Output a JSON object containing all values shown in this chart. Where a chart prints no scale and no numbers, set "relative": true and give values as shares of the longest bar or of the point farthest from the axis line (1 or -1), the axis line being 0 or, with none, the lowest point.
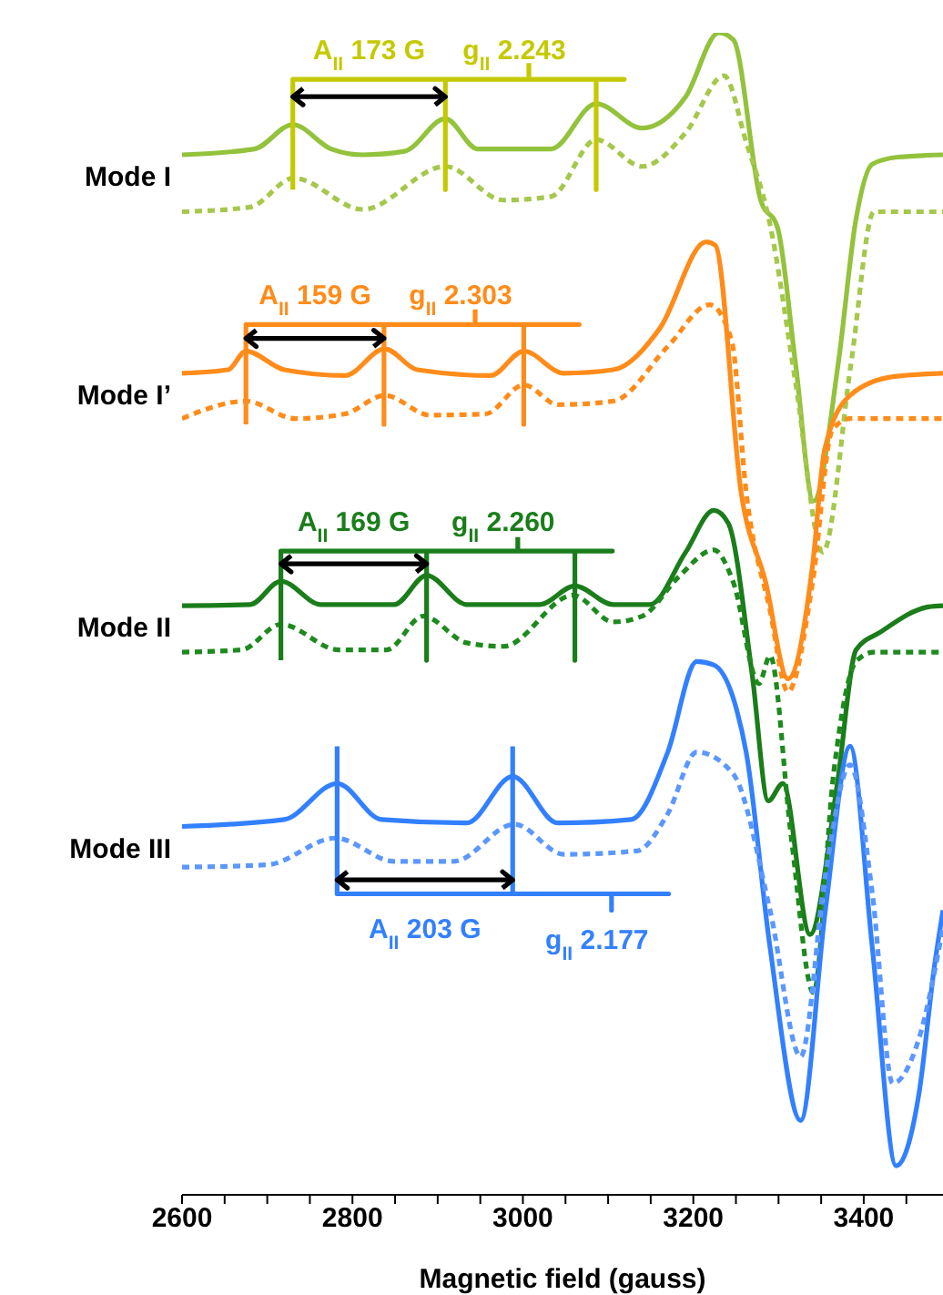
{
  "chart_data": {
    "type": "line",
    "relative": true,
    "xlabel": "Magnetic field (gauss)",
    "xlim": [
      2600,
      3493
    ],
    "xticks": [
      2600,
      {
        "value": 2650,
        "label": null
      },
      2800,
      {
        "value": 2700,
        "label": null
      },
      {
        "value": 2750,
        "label": null
      },
      {
        "value": 2850,
        "label": null
      },
      {
        "value": 2900,
        "label": null
      },
      {
        "value": 2950,
        "label": null
      },
      3000,
      {
        "value": 3050,
        "label": null
      },
      {
        "value": 3100,
        "label": null
      },
      {
        "value": 3150,
        "label": null
      },
      3200,
      {
        "value": 3250,
        "label": null
      },
      {
        "value": 3300,
        "label": null
      },
      {
        "value": 3350,
        "label": null
      },
      3400,
      {
        "value": 3450,
        "label": null
      }
    ],
    "series": [
      {
        "name": "Mode I",
        "color": "#93c23c",
        "line_style": "solid",
        "x": [
          2600,
          2685,
          2730,
          2775,
          2812,
          2861,
          2909,
          2947,
          3033,
          3086,
          3140,
          3191,
          3230,
          3247,
          3279,
          3299,
          3320,
          3341,
          3370,
          3391,
          3410,
          3440,
          3493
        ],
        "values": [
          0.895,
          0.9,
          0.921,
          0.9,
          0.895,
          0.898,
          0.926,
          0.9,
          0.9,
          0.939,
          0.918,
          0.945,
          1,
          0.994,
          0.856,
          0.832,
          0.715,
          0.597,
          0.715,
          0.84,
          0.887,
          0.893,
          0.895
        ]
      },
      {
        "color": "#a5c84c",
        "line_style": "dotted",
        "x": [
          2600,
          2680,
          2731,
          2812,
          2909,
          2977,
          3033,
          3086,
          3140,
          3191,
          3236,
          3262,
          3290,
          3320,
          3352,
          3385,
          3412,
          3434,
          3493
        ],
        "values": [
          0.846,
          0.85,
          0.875,
          0.848,
          0.885,
          0.856,
          0.859,
          0.908,
          0.885,
          0.914,
          0.963,
          0.906,
          0.835,
          0.699,
          0.553,
          0.715,
          0.846,
          0.846,
          0.846
        ]
      },
      {
        "name": "Mode I’",
        "color": "#ff8c1a",
        "line_style": "solid",
        "x": [
          2600,
          2654,
          2675,
          2720,
          2791,
          2838,
          2876,
          2962,
          3001,
          3048,
          3106,
          3161,
          3215,
          3226,
          3256,
          3285,
          3311,
          3340,
          3354,
          3384,
          3434,
          3493
        ],
        "values": [
          0.707,
          0.71,
          0.726,
          0.71,
          0.705,
          0.728,
          0.71,
          0.705,
          0.726,
          0.707,
          0.71,
          0.746,
          0.82,
          0.817,
          0.605,
          0.527,
          0.444,
          0.542,
          0.641,
          0.688,
          0.704,
          0.707
        ]
      },
      {
        "color": "#ff8c1a",
        "line_style": "dotted",
        "x": [
          2600,
          2675,
          2733,
          2791,
          2838,
          2891,
          2956,
          3001,
          3041,
          3106,
          3170,
          3219,
          3245,
          3262,
          3290,
          3311,
          3340,
          3363,
          3384,
          3493
        ],
        "values": [
          0.668,
          0.683,
          0.668,
          0.672,
          0.688,
          0.671,
          0.672,
          0.697,
          0.68,
          0.683,
          0.73,
          0.766,
          0.735,
          0.605,
          0.503,
          0.433,
          0.527,
          0.658,
          0.668,
          0.668
        ]
      },
      {
        "name": "Mode II",
        "color": "#1a7d1a",
        "line_style": "solid",
        "x": [
          2600,
          2680,
          2716,
          2763,
          2849,
          2887,
          2934,
          3020,
          3061,
          3106,
          3149,
          3191,
          3224,
          3241,
          3269,
          3288,
          3305,
          3337,
          3369,
          3391,
          3419,
          3476,
          3493
        ],
        "values": [
          0.507,
          0.508,
          0.528,
          0.508,
          0.508,
          0.533,
          0.508,
          0.508,
          0.524,
          0.508,
          0.508,
          0.553,
          0.589,
          0.578,
          0.448,
          0.339,
          0.354,
          0.224,
          0.354,
          0.469,
          0.484,
          0.506,
          0.507
        ]
      },
      {
        "color": "#1e8a1e",
        "line_style": "dotted",
        "x": [
          2600,
          2670,
          2716,
          2784,
          2840,
          2883,
          2934,
          2977,
          3059,
          3106,
          3140,
          3183,
          3224,
          3247,
          3277,
          3290,
          3315,
          3341,
          3365,
          3391,
          3412,
          3493
        ],
        "values": [
          0.467,
          0.469,
          0.491,
          0.469,
          0.469,
          0.498,
          0.475,
          0.472,
          0.516,
          0.493,
          0.498,
          0.532,
          0.555,
          0.527,
          0.44,
          0.464,
          0.307,
          0.174,
          0.365,
          0.459,
          0.467,
          0.467
        ]
      },
      {
        "name": "Mode III",
        "color": "#3380ff",
        "line_style": "solid",
        "x": [
          2600,
          2720,
          2782,
          2834,
          2934,
          2988,
          3041,
          3127,
          3170,
          3204,
          3224,
          3251,
          3262,
          3290,
          3326,
          3355,
          3384,
          3410,
          3438,
          3465,
          3483,
          3493
        ],
        "values": [
          0.317,
          0.323,
          0.354,
          0.323,
          0.32,
          0.36,
          0.32,
          0.323,
          0.381,
          0.459,
          0.456,
          0.417,
          0.381,
          0.213,
          0.064,
          0.245,
          0.386,
          0.213,
          0.025,
          0.088,
          0.197,
          0.245
        ]
      },
      {
        "color": "#5b97ff",
        "line_style": "dotted",
        "x": [
          2600,
          2700,
          2780,
          2849,
          2919,
          2990,
          3048,
          3134,
          3170,
          3204,
          3247,
          3290,
          3326,
          3355,
          3384,
          3410,
          3434,
          3465,
          3493
        ],
        "values": [
          0.282,
          0.284,
          0.307,
          0.287,
          0.287,
          0.319,
          0.293,
          0.296,
          0.328,
          0.381,
          0.362,
          0.245,
          0.119,
          0.276,
          0.37,
          0.26,
          0.096,
          0.135,
          0.23
        ]
      },
      {
        "color": "#c5c900",
        "line_style": "solid",
        "x": [
          2730,
          2730,
          2909,
          2909,
          2909,
          3086,
          3086,
          3086,
          3119,
          3007,
          3007
        ],
        "values": [
          0.865,
          0.96,
          0.96,
          0.865,
          0.96,
          0.96,
          0.865,
          0.96,
          0.96,
          0.96,
          0.974
        ]
      },
      {
        "color": "#000000",
        "line_style": "solid",
        "x": [
          2742,
          2730,
          2742,
          2730,
          2909,
          2897,
          2909,
          2897
        ],
        "values": [
          0.952,
          0.945,
          0.938,
          0.945,
          0.945,
          0.952,
          0.945,
          0.938
        ]
      },
      {
        "color": "#ff8c1a",
        "line_style": "solid",
        "x": [
          2675,
          2675,
          2837,
          2837,
          2837,
          3001,
          3001,
          3001,
          3066,
          2944,
          2944
        ],
        "values": [
          0.663,
          0.749,
          0.749,
          0.663,
          0.749,
          0.749,
          0.663,
          0.749,
          0.749,
          0.749,
          0.762
        ]
      },
      {
        "color": "#000000",
        "line_style": "solid",
        "x": [
          2687,
          2675,
          2687,
          2675,
          2837,
          2825,
          2837,
          2825
        ],
        "values": [
          0.744,
          0.737,
          0.73,
          0.737,
          0.737,
          0.744,
          0.737,
          0.73
        ]
      },
      {
        "color": "#1a7d1a",
        "line_style": "solid",
        "x": [
          2716,
          2716,
          2887,
          2887,
          2887,
          3061,
          3061,
          3061,
          3105,
          2994,
          2994
        ],
        "values": [
          0.46,
          0.554,
          0.554,
          0.46,
          0.554,
          0.554,
          0.46,
          0.554,
          0.554,
          0.554,
          0.566
        ]
      },
      {
        "color": "#000000",
        "line_style": "solid",
        "x": [
          2728,
          2716,
          2728,
          2716,
          2887,
          2875,
          2887,
          2875
        ],
        "values": [
          0.55,
          0.543,
          0.536,
          0.543,
          0.543,
          0.55,
          0.543,
          0.536
        ]
      },
      {
        "color": "#3380ff",
        "line_style": "solid",
        "x": [
          2782,
          2782,
          3171,
          3104,
          3104,
          3104,
          2988,
          2988
        ],
        "values": [
          0.386,
          0.259,
          0.259,
          0.259,
          0.245,
          0.259,
          0.259,
          0.386
        ]
      },
      {
        "color": "#000000",
        "line_style": "solid",
        "x": [
          2794,
          2782,
          2794,
          2782,
          2988,
          2976,
          2988,
          2976
        ],
        "values": [
          0.278,
          0.271,
          0.264,
          0.271,
          0.271,
          0.278,
          0.271,
          0.264
        ]
      }
    ],
    "annotations": [
      "A$_{II}$ 173 G",
      "g$_{II}$ 2.243",
      "A$_{II}$ 159 G",
      "g$_{II}$ 2.303",
      "A$_{II}$ 169 G",
      "g$_{II}$ 2.260",
      "A$_{II}$ 203 G",
      "g$_{II}$ 2.177"
    ]
  }
}
